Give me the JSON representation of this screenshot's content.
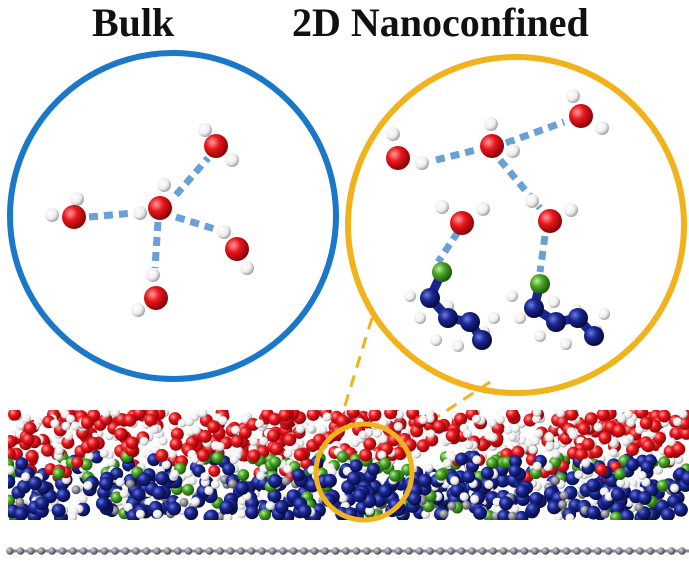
{
  "titles": {
    "left": "Bulk",
    "right": "2D Nanoconfined"
  },
  "colors": {
    "bulk_ring": "#1b78c8",
    "nano_ring": "#f2b21c",
    "oxygen": "#e0151b",
    "hydrogen": "#ffffff",
    "nitrogen": "#1a2690",
    "functional_atom": "#4aa528",
    "hbond": "#6a9fd8",
    "substrate": "#8a8a94"
  },
  "panels": [
    {
      "name": "bulk",
      "ring_color": "bulk_ring",
      "content": "water molecules with hydrogen bonds"
    },
    {
      "name": "nanoconfined",
      "ring_color": "nano_ring",
      "content": "water molecules hydrogen-bonded to surface functional groups"
    }
  ],
  "bottom_slab": {
    "layers": [
      "oxygen",
      "hydrogen",
      "functional_atom",
      "nitrogen"
    ],
    "zoom_indicator": true
  }
}
